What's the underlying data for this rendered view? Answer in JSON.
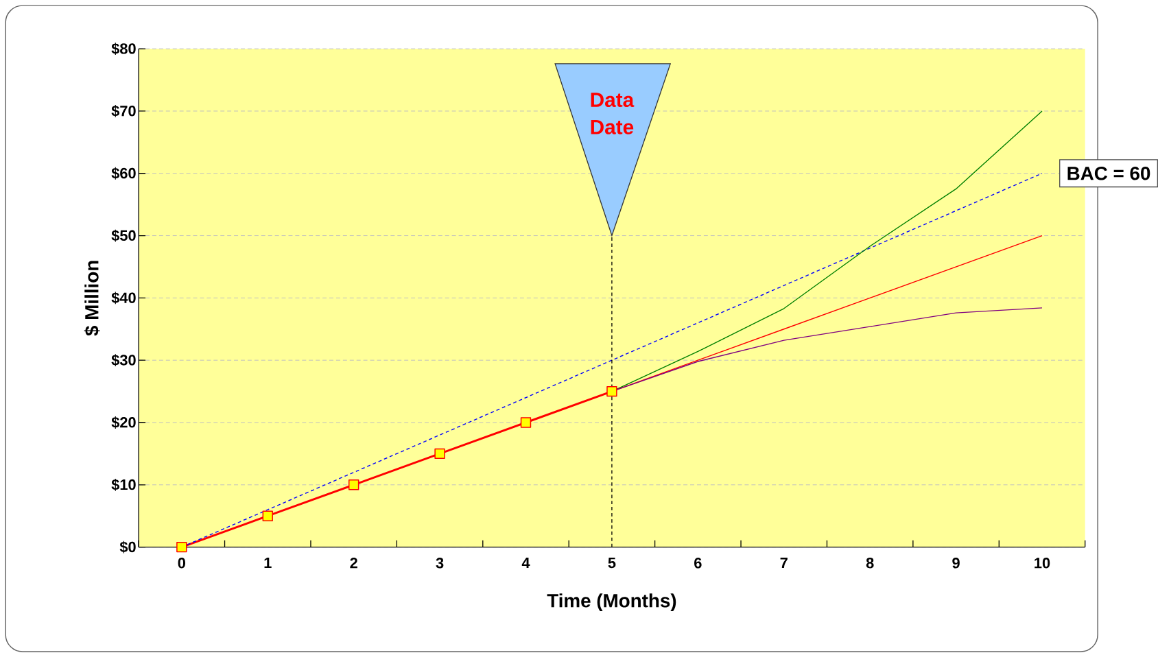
{
  "chart_data": {
    "type": "line",
    "xlabel": "Time (Months)",
    "ylabel": "$ Million",
    "categories": [
      "0",
      "1",
      "2",
      "3",
      "4",
      "5",
      "6",
      "7",
      "8",
      "9",
      "10"
    ],
    "series": [
      {
        "color": "#ff0000",
        "values": [
          0,
          5,
          10,
          15,
          20,
          25,
          null,
          null,
          null,
          null,
          null
        ],
        "marker": "square"
      },
      {
        "color": "#0000ff",
        "values": [
          0,
          6,
          12,
          18,
          24,
          30,
          36,
          42,
          48,
          54,
          60
        ],
        "line_style": "dashed"
      },
      {
        "color": "#008000",
        "values": [
          null,
          null,
          null,
          null,
          null,
          25,
          31.4,
          38.3,
          48.3,
          57.5,
          70
        ]
      },
      {
        "color": "#ff0000",
        "values": [
          null,
          null,
          null,
          null,
          null,
          25,
          30,
          35,
          40,
          45,
          50
        ]
      },
      {
        "color": "#800080",
        "values": [
          null,
          null,
          null,
          null,
          null,
          25,
          29.8,
          33.2,
          35.4,
          37.6,
          38.4
        ]
      }
    ],
    "ylim": [
      0,
      80
    ],
    "yticks": [
      {
        "value": 0,
        "label": "$0"
      },
      {
        "value": 10,
        "label": "$10"
      },
      {
        "value": 20,
        "label": "$20"
      },
      {
        "value": 30,
        "label": "$30"
      },
      {
        "value": 40,
        "label": "$40"
      },
      {
        "value": 50,
        "label": "$50"
      },
      {
        "value": 60,
        "label": "$60"
      },
      {
        "value": 70,
        "label": "$70"
      },
      {
        "value": 80,
        "label": "$80"
      }
    ],
    "grid": "y",
    "marker": "none",
    "line_style": "solid",
    "ref_lines": [
      {
        "axis": "x",
        "value": "5",
        "color": "#000000",
        "line_style": "dashed"
      }
    ],
    "annotations": [
      "Data Date",
      {
        "text": "BAC = 60",
        "x": "10",
        "y": 60
      }
    ]
  }
}
